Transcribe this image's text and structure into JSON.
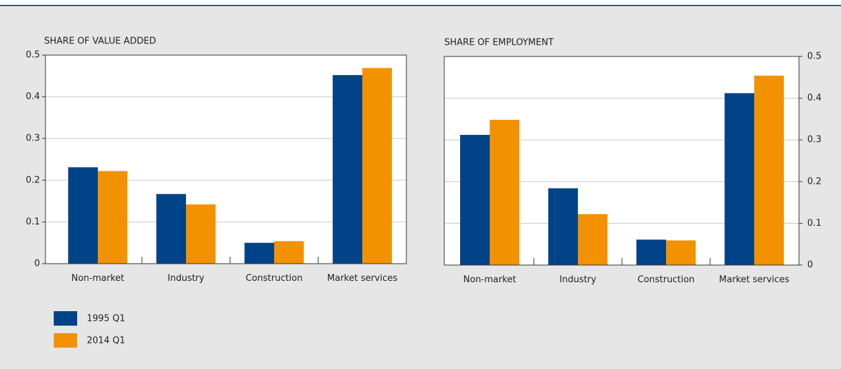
{
  "chart_data": [
    {
      "type": "bar",
      "title": "SHARE OF VALUE ADDED",
      "categories": [
        "Non-market",
        "Industry",
        "Construction",
        "Market services"
      ],
      "series": [
        {
          "name": "1995 Q1",
          "color": "#004388",
          "values": [
            0.231,
            0.167,
            0.05,
            0.452
          ]
        },
        {
          "name": "2014 Q1",
          "color": "#f39200",
          "values": [
            0.222,
            0.142,
            0.054,
            0.469
          ]
        }
      ],
      "ylim": [
        0,
        0.5
      ],
      "yticks": [
        0,
        0.1,
        0.2,
        0.3,
        0.4,
        0.5
      ],
      "grid": true,
      "y_axis_side": "left"
    },
    {
      "type": "bar",
      "title": "SHARE OF EMPLOYMENT",
      "categories": [
        "Non-market",
        "Industry",
        "Construction",
        "Market services"
      ],
      "series": [
        {
          "color": "#004388",
          "values": [
            0.312,
            0.184,
            0.061,
            0.412
          ]
        },
        {
          "color": "#f39200",
          "values": [
            0.348,
            0.122,
            0.059,
            0.454
          ]
        }
      ],
      "ylim": [
        0,
        0.5
      ],
      "yticks": [
        0,
        0.1,
        0.2,
        0.3,
        0.4,
        0.5
      ],
      "grid": true,
      "y_axis_side": "right"
    }
  ]
}
